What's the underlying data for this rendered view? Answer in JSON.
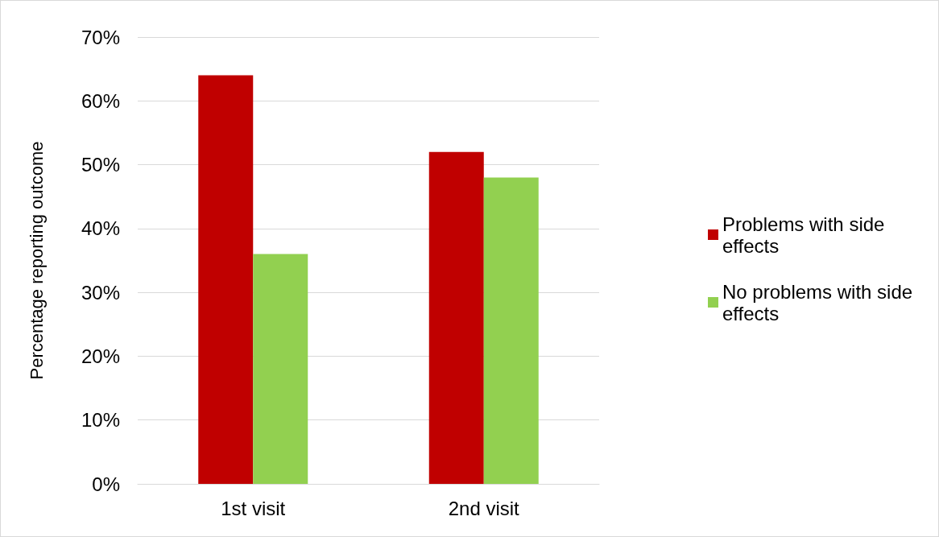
{
  "chart_data": {
    "type": "bar",
    "ylabel": "Percentage reporting outcome",
    "categories": [
      "1st visit",
      "2nd visit"
    ],
    "series": [
      {
        "name": "Problems with side effects",
        "color": "#c00000",
        "values": [
          64,
          52
        ]
      },
      {
        "name": "No problems with side effects",
        "color": "#92d050",
        "values": [
          36,
          48
        ]
      }
    ],
    "ylim": [
      0,
      70
    ],
    "yticks": [
      {
        "value": 0,
        "label": "0%"
      },
      {
        "value": 10,
        "label": "10%"
      },
      {
        "value": 20,
        "label": "20%"
      },
      {
        "value": 30,
        "label": "30%"
      },
      {
        "value": 40,
        "label": "40%"
      },
      {
        "value": 50,
        "label": "50%"
      },
      {
        "value": 60,
        "label": "60%"
      },
      {
        "value": 70,
        "label": "70%"
      }
    ],
    "grid": "y",
    "legend": "right"
  }
}
